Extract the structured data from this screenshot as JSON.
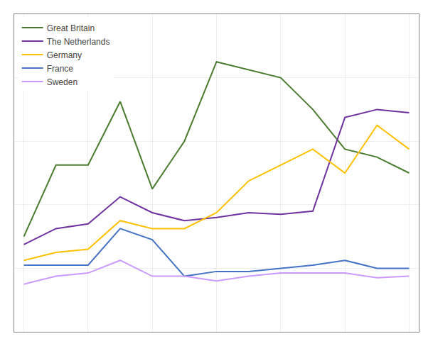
{
  "chart_data": {
    "type": "line",
    "x": [
      0,
      1,
      2,
      3,
      4,
      5,
      6,
      7,
      8,
      9,
      10,
      11,
      12
    ],
    "series": [
      {
        "name": "Great Britain",
        "color": "#4a7c2f",
        "values": [
          6.0,
          10.5,
          10.5,
          14.5,
          9.0,
          12.0,
          17.0,
          16.5,
          16.0,
          14.0,
          11.5,
          11.0,
          10.0
        ]
      },
      {
        "name": "The Netherlands",
        "color": "#7030a0",
        "values": [
          5.5,
          6.5,
          6.8,
          8.5,
          7.5,
          7.0,
          7.2,
          7.5,
          7.4,
          7.6,
          13.5,
          14.0,
          13.8
        ]
      },
      {
        "name": "Germany",
        "color": "#ffc000",
        "values": [
          4.5,
          5.0,
          5.2,
          7.0,
          6.5,
          6.5,
          7.5,
          9.5,
          10.5,
          11.5,
          10.0,
          13.0,
          11.5
        ]
      },
      {
        "name": "France",
        "color": "#4472c4",
        "values": [
          4.2,
          4.2,
          4.2,
          6.5,
          5.8,
          3.5,
          3.8,
          3.8,
          4.0,
          4.2,
          4.5,
          4.0,
          4.0
        ]
      },
      {
        "name": "Sweden",
        "color": "#cc99ff",
        "values": [
          3.0,
          3.5,
          3.7,
          4.5,
          3.5,
          3.5,
          3.2,
          3.5,
          3.7,
          3.7,
          3.7,
          3.4,
          3.5
        ]
      }
    ],
    "xlim": [
      -0.3,
      12.3
    ],
    "xticks": [
      0,
      2,
      4,
      6,
      8,
      10,
      12
    ],
    "ylim": [
      0,
      20
    ],
    "yticks": [
      0,
      4,
      8,
      12,
      16,
      20
    ],
    "grid": true,
    "legend": "upper left",
    "tick_labels": false
  }
}
